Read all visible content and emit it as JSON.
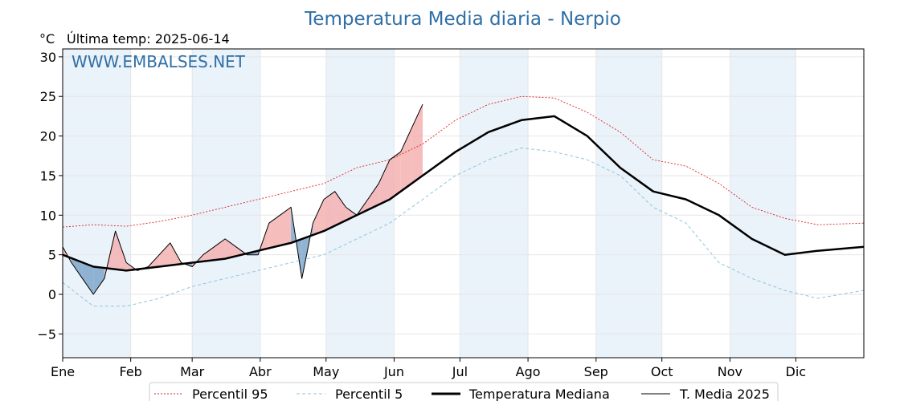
{
  "chart_data": {
    "type": "line",
    "title": "Temperatura Media diaria - Nerpio",
    "unit_label": "°C",
    "last_temp_label": "Última temp: 2025-06-14",
    "watermark": "WWW.EMBALSES.NET",
    "ylim": [
      -8,
      31
    ],
    "yticks": [
      -5,
      0,
      5,
      10,
      15,
      20,
      25,
      30
    ],
    "xlim": [
      1,
      366
    ],
    "months": [
      {
        "label": "Ene",
        "day": 1
      },
      {
        "label": "Feb",
        "day": 32
      },
      {
        "label": "Mar",
        "day": 60
      },
      {
        "label": "Abr",
        "day": 91
      },
      {
        "label": "May",
        "day": 121
      },
      {
        "label": "Jun",
        "day": 152
      },
      {
        "label": "Jul",
        "day": 182
      },
      {
        "label": "Ago",
        "day": 213
      },
      {
        "label": "Sep",
        "day": 244
      },
      {
        "label": "Oct",
        "day": 274
      },
      {
        "label": "Nov",
        "day": 305
      },
      {
        "label": "Dic",
        "day": 335
      }
    ],
    "grid": true,
    "legend_position": "bottom",
    "colors": {
      "p95": "#e02020",
      "p5": "#8ec7de",
      "median": "#000000",
      "current": "#000000",
      "above_fill": "#f4b2b2",
      "below_fill": "#7fa7cb",
      "band": "#eaf2fa",
      "watermark": "#2f6fa6"
    },
    "series": [
      {
        "name": "Percentil 95",
        "key": "p95",
        "x": [
          1,
          15,
          30,
          45,
          60,
          75,
          90,
          105,
          120,
          135,
          150,
          165,
          180,
          195,
          210,
          225,
          240,
          255,
          270,
          285,
          300,
          315,
          330,
          345,
          366
        ],
        "y": [
          8.5,
          8.8,
          8.6,
          9.2,
          10,
          11,
          12,
          13,
          14,
          16,
          17,
          19,
          22,
          24,
          25,
          24.8,
          23,
          20.5,
          17,
          16.2,
          14,
          11,
          9.6,
          8.8,
          9
        ]
      },
      {
        "name": "Percentil 5",
        "key": "p5",
        "x": [
          1,
          15,
          30,
          45,
          60,
          75,
          90,
          105,
          120,
          135,
          150,
          165,
          180,
          195,
          210,
          225,
          240,
          255,
          270,
          285,
          300,
          315,
          330,
          345,
          366
        ],
        "y": [
          1.5,
          -1.5,
          -1.5,
          -0.5,
          1,
          2,
          3,
          4,
          5,
          7,
          9,
          12,
          15,
          17,
          18.5,
          18,
          17,
          15,
          11,
          9,
          4,
          2,
          0.5,
          -0.5,
          0.5
        ]
      },
      {
        "name": "Temperatura Mediana",
        "key": "median",
        "x": [
          1,
          15,
          30,
          45,
          60,
          75,
          90,
          105,
          120,
          135,
          150,
          165,
          180,
          195,
          210,
          225,
          240,
          255,
          270,
          285,
          300,
          315,
          330,
          345,
          366
        ],
        "y": [
          5,
          3.5,
          3,
          3.5,
          4,
          4.5,
          5.5,
          6.5,
          8,
          10,
          12,
          15,
          18,
          20.5,
          22,
          22.5,
          20,
          16,
          13,
          12,
          10,
          7,
          5,
          5.5,
          6
        ]
      },
      {
        "name": "T. Media 2025",
        "key": "current",
        "x": [
          1,
          5,
          10,
          15,
          20,
          25,
          30,
          35,
          40,
          45,
          50,
          55,
          60,
          65,
          70,
          75,
          80,
          85,
          90,
          95,
          100,
          105,
          110,
          115,
          120,
          125,
          130,
          135,
          140,
          145,
          150,
          155,
          160,
          165
        ],
        "y": [
          6,
          4,
          2,
          0,
          2,
          8,
          4,
          3,
          3.5,
          5,
          6.5,
          4,
          3.5,
          5,
          6,
          7,
          6,
          5,
          5,
          9,
          10,
          11,
          2,
          9,
          12,
          13,
          11,
          10,
          12,
          14,
          17,
          18,
          21,
          24
        ]
      }
    ]
  }
}
